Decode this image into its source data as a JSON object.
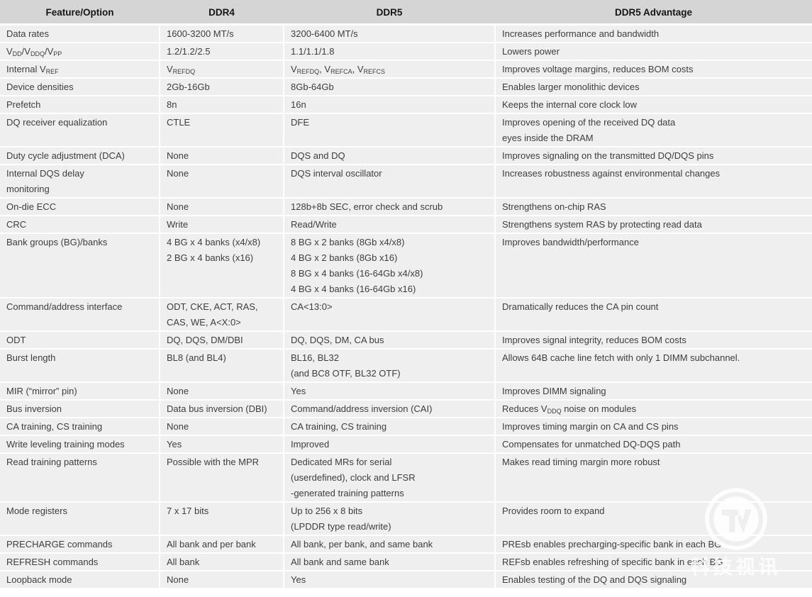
{
  "table": {
    "columns": [
      {
        "key": "feature",
        "label": "Feature/Option"
      },
      {
        "key": "ddr4",
        "label": "DDR4"
      },
      {
        "key": "ddr5",
        "label": "DDR5"
      },
      {
        "key": "advantage",
        "label": "DDR5 Advantage"
      }
    ],
    "subscript_marker": "~",
    "rows": [
      {
        "feature": [
          "Data rates"
        ],
        "ddr4": [
          "1600-3200 MT/s"
        ],
        "ddr5": [
          "3200-6400 MT/s"
        ],
        "advantage": [
          "Increases performance and bandwidth"
        ]
      },
      {
        "feature": [
          "V~DD~/V~DDQ~/V~PP~"
        ],
        "ddr4": [
          "1.2/1.2/2.5"
        ],
        "ddr5": [
          "1.1/1.1/1.8"
        ],
        "advantage": [
          "Lowers power"
        ]
      },
      {
        "feature": [
          "Internal V~REF~"
        ],
        "ddr4": [
          "V~REFDQ~"
        ],
        "ddr5": [
          "V~REFDQ~, V~REFCA~, V~REFCS~"
        ],
        "advantage": [
          "Improves voltage margins, reduces BOM costs"
        ]
      },
      {
        "feature": [
          "Device densities"
        ],
        "ddr4": [
          "2Gb-16Gb"
        ],
        "ddr5": [
          "8Gb-64Gb"
        ],
        "advantage": [
          "Enables larger monolithic devices"
        ]
      },
      {
        "feature": [
          "Prefetch"
        ],
        "ddr4": [
          "8n"
        ],
        "ddr5": [
          "16n"
        ],
        "advantage": [
          "Keeps the internal core clock low"
        ]
      },
      {
        "feature": [
          "DQ receiver equalization"
        ],
        "ddr4": [
          "CTLE"
        ],
        "ddr5": [
          "DFE"
        ],
        "advantage": [
          "Improves opening of the received DQ data",
          "eyes inside the DRAM"
        ]
      },
      {
        "feature": [
          "Duty cycle adjustment (DCA)"
        ],
        "ddr4": [
          "None"
        ],
        "ddr5": [
          "DQS and DQ"
        ],
        "advantage": [
          "Improves signaling on the transmitted DQ/DQS pins"
        ]
      },
      {
        "feature": [
          "Internal DQS delay",
          "monitoring"
        ],
        "ddr4": [
          "None"
        ],
        "ddr5": [
          "DQS interval oscillator"
        ],
        "advantage": [
          "Increases robustness against environmental changes"
        ]
      },
      {
        "feature": [
          "On-die ECC"
        ],
        "ddr4": [
          "None"
        ],
        "ddr5": [
          "128b+8b SEC, error check and scrub"
        ],
        "advantage": [
          "Strengthens on-chip RAS"
        ]
      },
      {
        "feature": [
          "CRC"
        ],
        "ddr4": [
          "Write"
        ],
        "ddr5": [
          "Read/Write"
        ],
        "advantage": [
          "Strengthens system RAS by protecting read data"
        ]
      },
      {
        "feature": [
          "Bank groups (BG)/banks"
        ],
        "ddr4": [
          "4 BG x 4 banks (x4/x8)",
          "2 BG x 4 banks (x16)"
        ],
        "ddr5": [
          "8 BG x 2 banks (8Gb x4/x8)",
          "4 BG x 2 banks (8Gb x16)",
          "8 BG x 4 banks (16-64Gb x4/x8)",
          "4 BG x 4 banks (16-64Gb x16)"
        ],
        "advantage": [
          "Improves bandwidth/performance"
        ]
      },
      {
        "feature": [
          "Command/address interface"
        ],
        "ddr4": [
          "ODT, CKE, ACT, RAS,",
          "CAS, WE, A<X:0>"
        ],
        "ddr5": [
          "CA<13:0>"
        ],
        "advantage": [
          "Dramatically reduces the CA pin count"
        ]
      },
      {
        "feature": [
          "ODT"
        ],
        "ddr4": [
          "DQ, DQS, DM/DBI"
        ],
        "ddr5": [
          "DQ, DQS, DM, CA bus"
        ],
        "advantage": [
          "Improves signal integrity, reduces  BOM costs"
        ]
      },
      {
        "feature": [
          "Burst length"
        ],
        "ddr4": [
          "BL8 (and BL4)"
        ],
        "ddr5": [
          "BL16, BL32",
          "(and BC8 OTF, BL32 OTF)"
        ],
        "advantage": [
          "Allows 64B cache line fetch with only 1 DIMM subchannel."
        ]
      },
      {
        "feature": [
          "MIR (“mirror” pin)"
        ],
        "ddr4": [
          "None"
        ],
        "ddr5": [
          "Yes"
        ],
        "advantage": [
          "Improves DIMM signaling"
        ]
      },
      {
        "feature": [
          "Bus inversion"
        ],
        "ddr4": [
          "Data bus inversion (DBI)"
        ],
        "ddr5": [
          "Command/address inversion (CAI)"
        ],
        "advantage": [
          "Reduces V~DDQ~ noise on modules"
        ]
      },
      {
        "feature": [
          "CA training, CS training"
        ],
        "ddr4": [
          "None"
        ],
        "ddr5": [
          "CA training, CS training"
        ],
        "advantage": [
          "Improves timing margin on CA and CS pins"
        ]
      },
      {
        "feature": [
          "Write leveling training modes"
        ],
        "ddr4": [
          "Yes"
        ],
        "ddr5": [
          "Improved"
        ],
        "advantage": [
          "Compensates for unmatched DQ-DQS path"
        ]
      },
      {
        "feature": [
          "Read training patterns"
        ],
        "ddr4": [
          "Possible with the MPR"
        ],
        "ddr5": [
          "Dedicated MRs for serial",
          "(userdefined), clock and LFSR",
          "-generated training patterns"
        ],
        "advantage": [
          "Makes read timing margin more robust"
        ]
      },
      {
        "feature": [
          "Mode registers"
        ],
        "ddr4": [
          "7 x 17 bits"
        ],
        "ddr5": [
          "Up to 256 x 8 bits",
          "(LPDDR type read/write)"
        ],
        "advantage": [
          "Provides room to expand"
        ]
      },
      {
        "feature": [
          "PRECHARGE commands"
        ],
        "ddr4": [
          "All bank and per bank"
        ],
        "ddr5": [
          "All bank, per bank, and same bank"
        ],
        "advantage": [
          "PREsb enables precharging-specific bank in each BG"
        ]
      },
      {
        "feature": [
          "REFRESH commands"
        ],
        "ddr4": [
          "All bank"
        ],
        "ddr5": [
          "All bank and same bank"
        ],
        "advantage": [
          "REFsb enables refreshing of specific bank in each BG"
        ]
      },
      {
        "feature": [
          "Loopback mode"
        ],
        "ddr4": [
          "None"
        ],
        "ddr5": [
          "Yes"
        ],
        "advantage": [
          "Enables testing of the DQ and DQS signaling"
        ]
      }
    ]
  },
  "watermark": {
    "logo_icon": "tv-circle-logo",
    "text": "科技视讯"
  },
  "colors": {
    "header_bg": "#d5d5d5",
    "row_bg": "#efefef",
    "grid": "#ffffff",
    "header_text": "#151515",
    "body_text": "#3d3d3d",
    "watermark": "#ffffff"
  }
}
